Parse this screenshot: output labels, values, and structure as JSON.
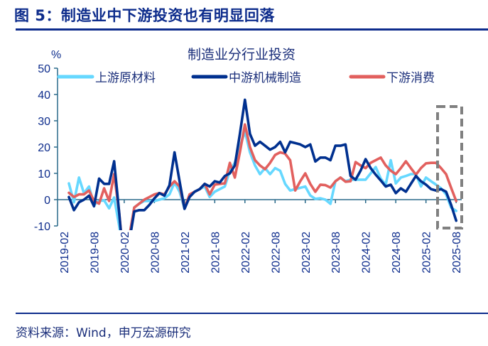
{
  "figure": {
    "title": "图 5：制造业中下游投资也有明显回落",
    "source": "资料来源：Wind，申万宏源研究"
  },
  "colors": {
    "upstream": "#66d8ff",
    "midstream": "#00308f",
    "downstream": "#e2605e",
    "highlight_box": "#808080",
    "text": "#0d2c8c"
  },
  "chart_data": {
    "type": "line",
    "title": "制造业分行业投资",
    "ylabel": "%",
    "xlabel": "",
    "ylim": [
      -10,
      50
    ],
    "yticks": [
      -10,
      0,
      10,
      20,
      30,
      40,
      50
    ],
    "xtick_labels": [
      "2019-02",
      "2019-08",
      "2020-02",
      "2020-08",
      "2021-02",
      "2021-08",
      "2022-02",
      "2022-08",
      "2023-02",
      "2023-08",
      "2024-02",
      "2024-08",
      "2025-02",
      "2025-08"
    ],
    "x_start": "2019-03",
    "x_end": "2025-08",
    "frequency": "monthly",
    "legend_position": "top",
    "annotation": "dashed box highlighting 2025-03 to 2025-08",
    "series": [
      {
        "name": "上游原材料",
        "color_key": "upstream",
        "values": [
          6.2,
          -1,
          8.4,
          2.4,
          5,
          -2,
          -0.5,
          -0.3,
          -3.3,
          0.8,
          -10,
          -25,
          -15,
          -3,
          -1.5,
          -0.5,
          -0.5,
          -0.5,
          0,
          0.5,
          2,
          6.5,
          3,
          -3.5,
          1.6,
          3,
          4,
          5,
          1,
          3,
          4,
          5,
          11,
          14,
          20,
          26,
          18,
          13,
          9.7,
          12,
          9.7,
          12,
          11,
          6,
          3.5,
          4,
          4.5,
          5,
          1.6,
          0.3,
          0.5,
          0,
          -1.6,
          7,
          8.4,
          7,
          7.6,
          7.6,
          7.6,
          7.6,
          10,
          12.4,
          8,
          5.7,
          15,
          6.2,
          8.4,
          9,
          9.7,
          9.7,
          5,
          8.4,
          7,
          5.7,
          4.3,
          2,
          -3,
          -4.3
        ]
      },
      {
        "name": "中游机械制造",
        "color_key": "midstream",
        "values": [
          1,
          -4,
          -1,
          0,
          1.5,
          -2.5,
          8,
          6,
          6,
          14.6,
          -5,
          -27,
          -16,
          -4.5,
          -4,
          -4,
          -2,
          0.5,
          2.5,
          1.5,
          5.5,
          18,
          7,
          -3.5,
          1,
          3,
          4,
          6,
          5,
          7,
          6.5,
          9,
          10,
          13,
          25,
          38,
          25,
          20.5,
          22,
          20.5,
          19,
          20,
          22,
          18,
          22,
          21.5,
          21,
          20,
          21,
          14.5,
          16,
          16,
          15,
          20.5,
          20.5,
          21,
          9,
          7.6,
          11,
          15.4,
          12,
          9.5,
          7.3,
          5,
          5.7,
          2.5,
          4.3,
          3,
          6,
          9,
          7,
          5.7,
          4,
          3.5,
          4,
          3,
          -2,
          -8
        ]
      },
      {
        "name": "下游消费",
        "color_key": "downstream",
        "values": [
          2.6,
          1,
          2,
          2,
          3.5,
          -0.5,
          -1.5,
          4.3,
          -0.5,
          9.7,
          -5,
          -25,
          -14,
          -3,
          -1.5,
          0,
          1,
          2,
          2.5,
          2,
          5,
          7,
          5,
          -3.3,
          2,
          3,
          4,
          6,
          2,
          5.7,
          6,
          6.2,
          14,
          8.4,
          18,
          28.6,
          20,
          15,
          13,
          11.6,
          14,
          17,
          18,
          17.5,
          15,
          3.5,
          7,
          10,
          6,
          3,
          5.7,
          5.5,
          4.6,
          7,
          8.4,
          6.8,
          7,
          14.3,
          13,
          12,
          14,
          15,
          16,
          13,
          11,
          9.7,
          12,
          14.6,
          12,
          9.5,
          12,
          13.8,
          14,
          14,
          12,
          9.7,
          4.5,
          -0.5
        ]
      }
    ]
  }
}
